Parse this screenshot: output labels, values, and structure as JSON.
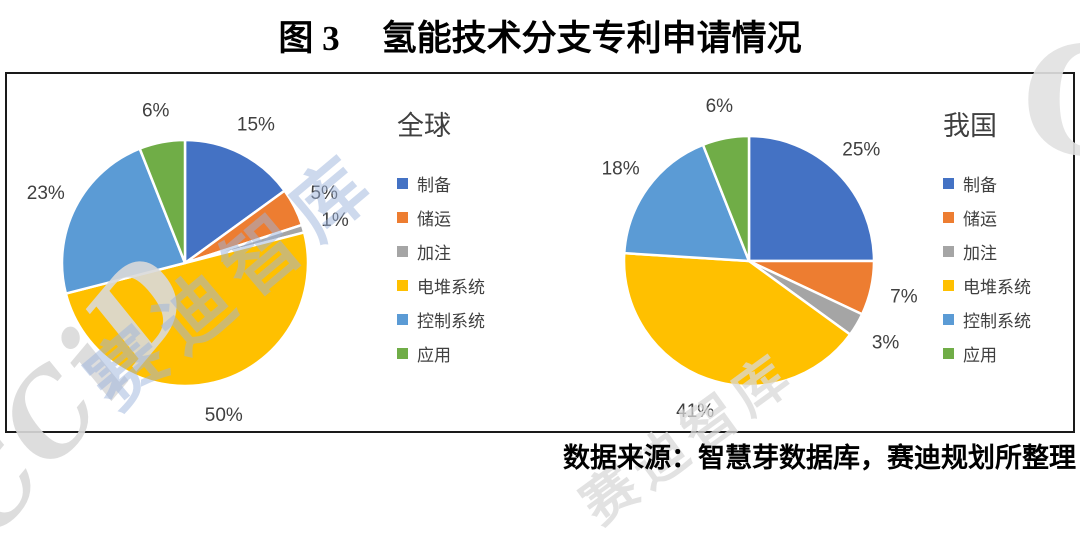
{
  "figure": {
    "title_prefix": "图 3",
    "title_text": "氢能技术分支专利申请情况",
    "source": "数据来源：智慧芽数据库，赛迪规划所整理"
  },
  "palette": {
    "series_blue": "#4472C4",
    "series_orange": "#ED7D31",
    "series_gray": "#A5A5A5",
    "series_yellow": "#FFC000",
    "series_light_blue": "#5B9BD5",
    "series_green": "#70AD47",
    "label_text": "#404040",
    "frame_border": "#1a1a1a"
  },
  "watermarks": {
    "ccid": "CCiD",
    "saidi": "赛迪智库",
    "corner_c": "C"
  },
  "chart_data": [
    {
      "type": "pie",
      "title": "全球",
      "categories": [
        "制备",
        "储运",
        "加注",
        "电堆系统",
        "控制系统",
        "应用"
      ],
      "values": [
        15,
        5,
        1,
        50,
        23,
        6
      ],
      "unit": "%",
      "colors": [
        "#4472C4",
        "#ED7D31",
        "#A5A5A5",
        "#FFC000",
        "#5B9BD5",
        "#70AD47"
      ],
      "legend_position": "right",
      "start_angle": "12-oclock",
      "direction": "clockwise"
    },
    {
      "type": "pie",
      "title": "我国",
      "categories": [
        "制备",
        "储运",
        "加注",
        "电堆系统",
        "控制系统",
        "应用"
      ],
      "values": [
        25,
        7,
        3,
        41,
        18,
        6
      ],
      "unit": "%",
      "colors": [
        "#4472C4",
        "#ED7D31",
        "#A5A5A5",
        "#FFC000",
        "#5B9BD5",
        "#70AD47"
      ],
      "legend_position": "right",
      "start_angle": "12-oclock",
      "direction": "clockwise"
    }
  ]
}
